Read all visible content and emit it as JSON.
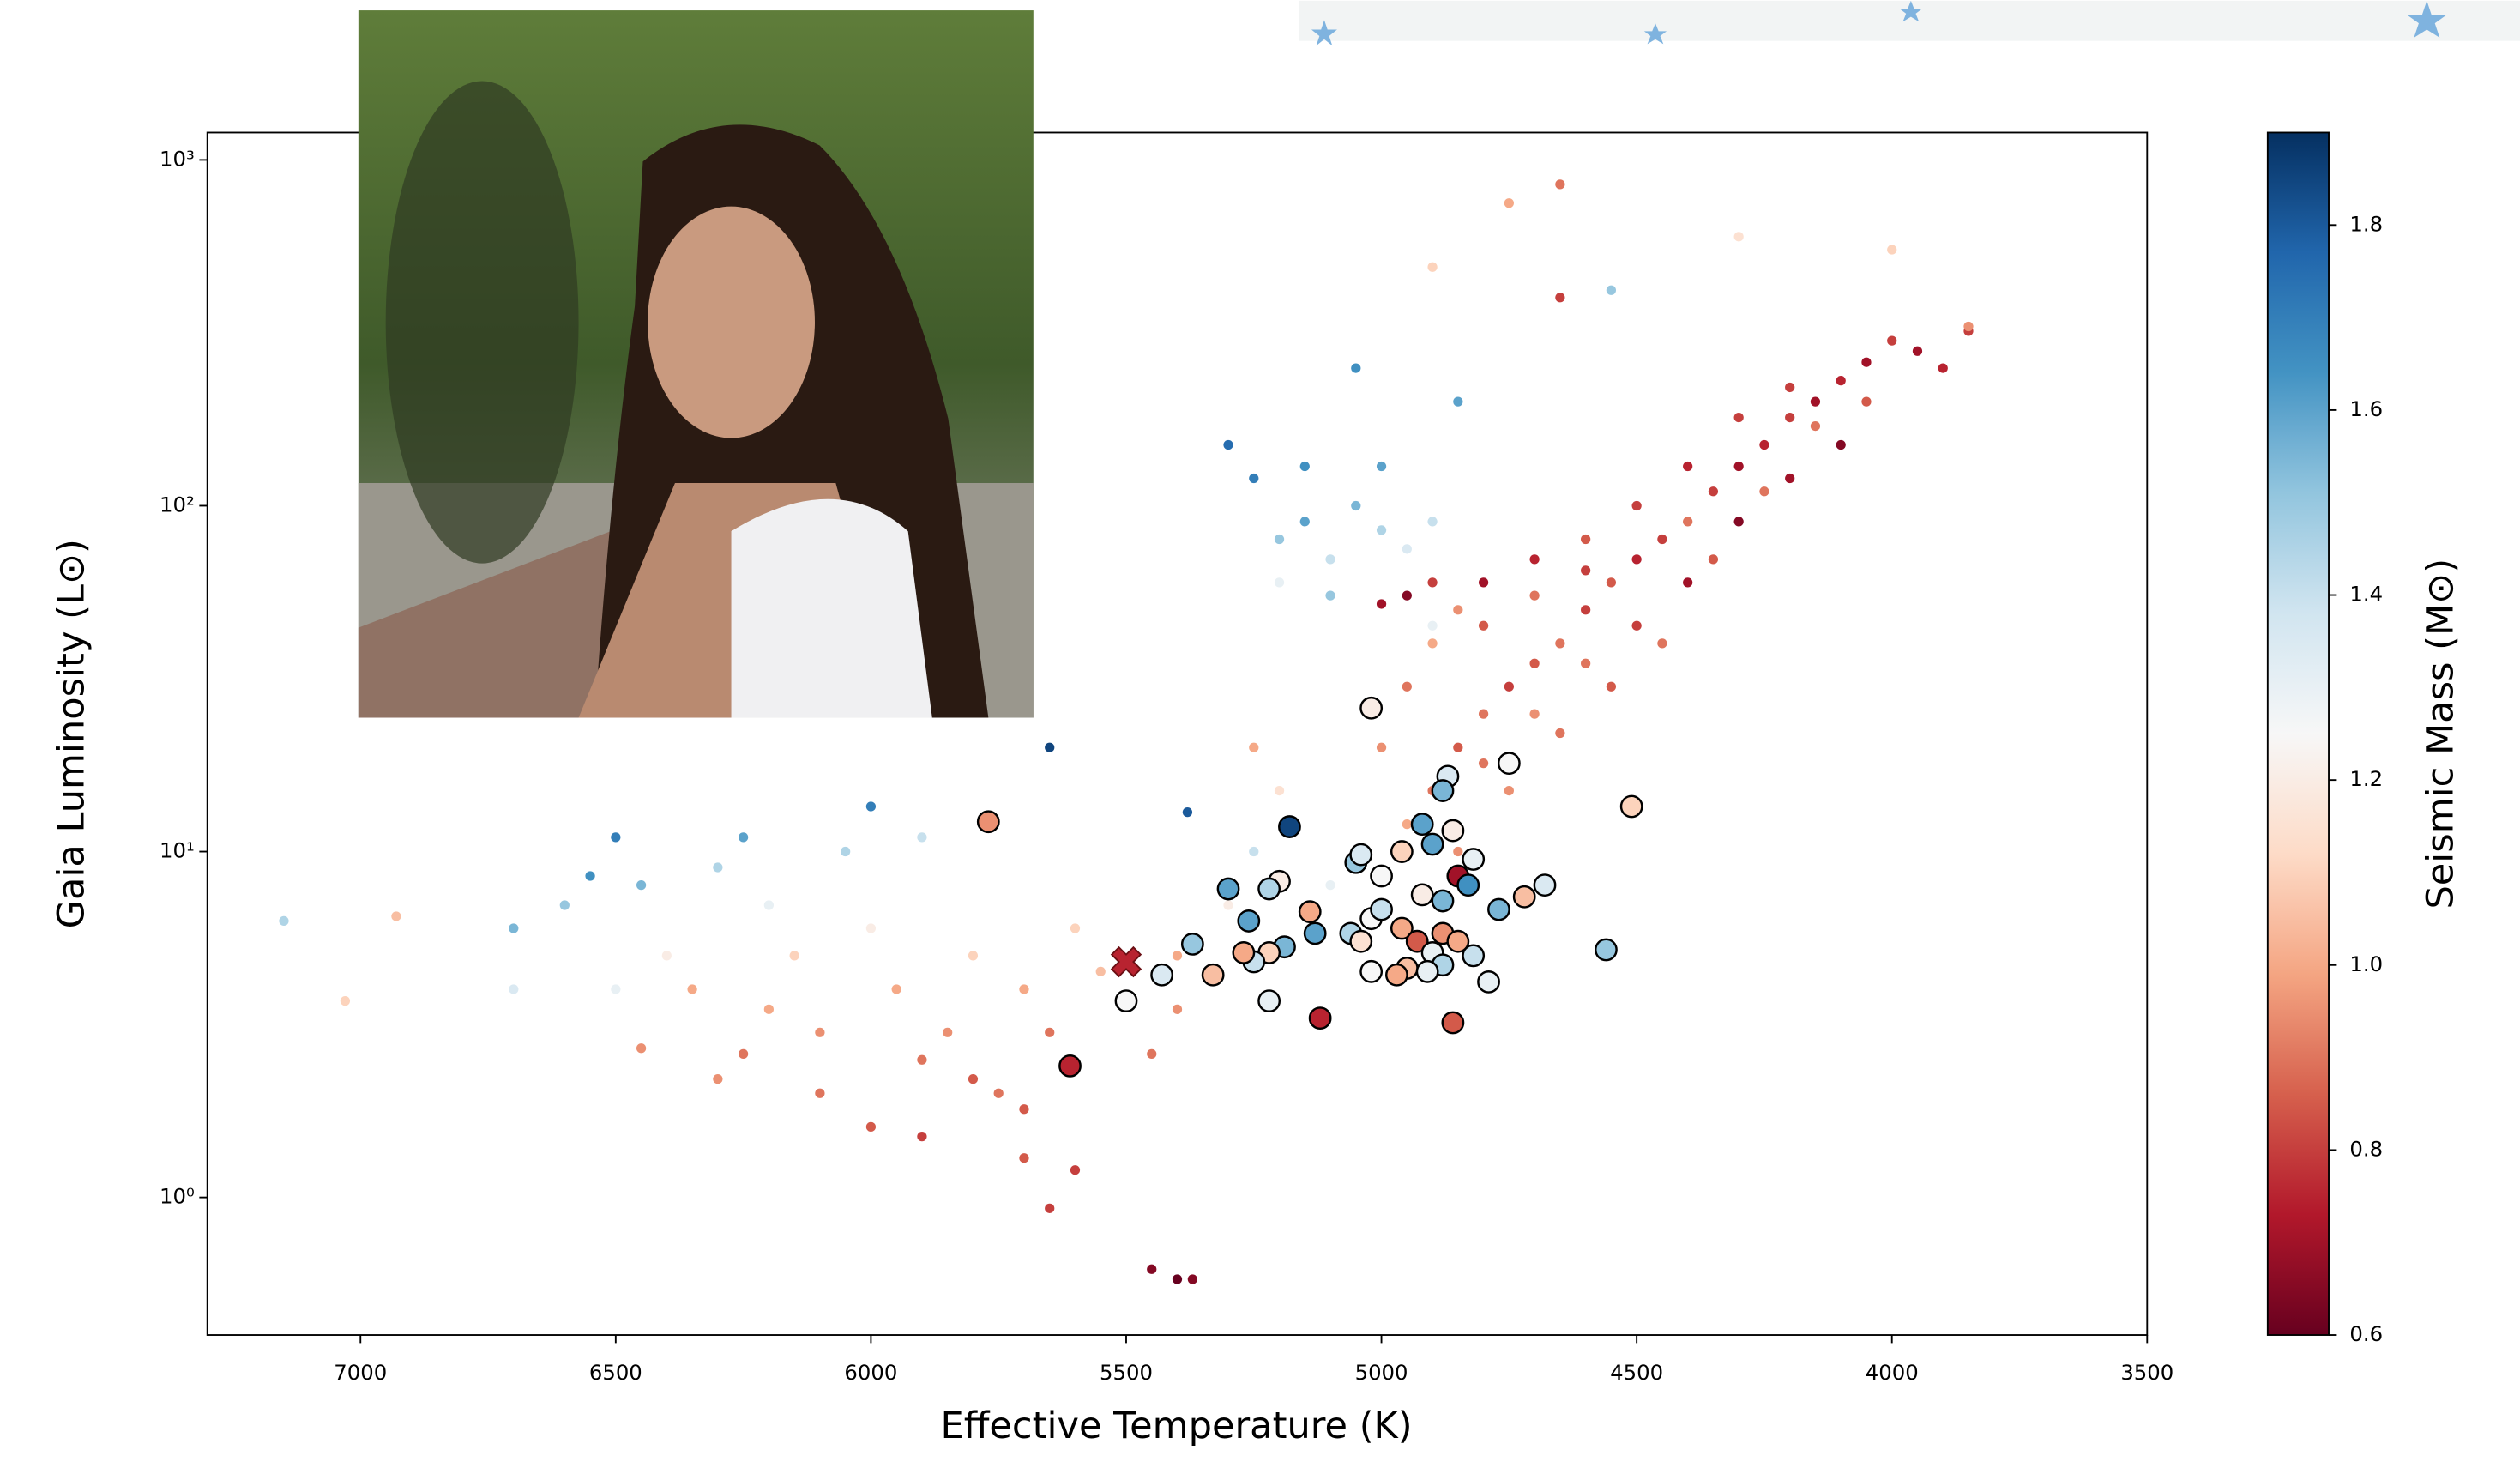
{
  "chart_data": {
    "type": "scatter",
    "x_label": "Effective Temperature (K)",
    "y_label": "Gaia Luminosity (L⊙)",
    "xlim": [
      7300,
      3500
    ],
    "xticks": [
      7000,
      6500,
      6000,
      5500,
      5000,
      4500,
      4000,
      3500
    ],
    "ylim": [
      0.4,
      1200
    ],
    "yscale": "log",
    "yticks": [
      {
        "value": 1,
        "label": "10⁰"
      },
      {
        "value": 10,
        "label": "10¹"
      },
      {
        "value": 100,
        "label": "10²"
      },
      {
        "value": 1000,
        "label": "10³"
      }
    ],
    "colorbar": {
      "label": "Seismic Mass (M⊙)",
      "colormap": "RdBu",
      "lim": [
        0.6,
        1.9
      ],
      "ticks": [
        0.6,
        0.8,
        {
          "value": 1.0,
          "label": "1.0"
        },
        1.2,
        1.4,
        1.6,
        1.8
      ]
    },
    "series": [
      {
        "marker": "dot",
        "x": [
          4900,
          4850,
          4800,
          4750,
          4700,
          4650,
          4600,
          4550,
          4500,
          4450,
          4400,
          4350,
          4300,
          4250,
          4200,
          4150,
          4100,
          4050,
          4000,
          3950,
          3900,
          3850,
          4100,
          4200,
          4300,
          4400,
          4500,
          4600,
          4700,
          4800,
          4950,
          5000,
          4950,
          4900,
          4850,
          4800,
          4700,
          4600,
          4500,
          4400,
          4300,
          4200,
          4450,
          4350,
          4550,
          4650,
          4750,
          4850,
          4250,
          4150,
          4050,
          4900,
          4950,
          5000,
          4800,
          4700,
          4600,
          5200,
          5150,
          5100,
          5050,
          5000,
          4950,
          5200,
          5100,
          5250,
          5150,
          5000,
          4900,
          5050,
          4850,
          5300,
          4900,
          4750,
          4650,
          4900,
          4650,
          4550,
          4300,
          4000,
          3850,
          6700,
          6600,
          6500,
          6450,
          6400,
          6350,
          6300,
          6250,
          6200,
          6150,
          6100,
          6050,
          6000,
          5950,
          5900,
          5850,
          5800,
          5750,
          5700,
          5650,
          5600,
          5550,
          6500,
          6300,
          6200,
          6100,
          6000,
          5900,
          5800,
          5700,
          6450,
          6250,
          5400,
          5300,
          5400,
          5450,
          5600,
          5650,
          5700,
          5450,
          5400,
          5370,
          7150,
          6930,
          7030,
          6700,
          6550,
          6000,
          5900,
          5650,
          5380,
          5250,
          5100,
          5200,
          5250
        ],
        "y": [
          15,
          20,
          25,
          30,
          35,
          40,
          50,
          60,
          70,
          80,
          90,
          110,
          130,
          150,
          180,
          200,
          230,
          260,
          300,
          280,
          250,
          320,
          150,
          120,
          90,
          60,
          45,
          35,
          25,
          18,
          12,
          20,
          30,
          40,
          50,
          45,
          55,
          80,
          100,
          130,
          180,
          220,
          40,
          70,
          30,
          22,
          15,
          10,
          110,
          170,
          200,
          60,
          55,
          52,
          60,
          70,
          65,
          80,
          90,
          70,
          100,
          85,
          75,
          60,
          55,
          120,
          130,
          130,
          90,
          250,
          200,
          150,
          45,
          750,
          850,
          490,
          400,
          420,
          600,
          550,
          330,
          6,
          7,
          11,
          8,
          5,
          4,
          9,
          11,
          7,
          5,
          3,
          10,
          6,
          4,
          2.5,
          3,
          5,
          2,
          4,
          3,
          6,
          4.5,
          4,
          2.2,
          3.5,
          2,
          1.6,
          1.5,
          2.2,
          1.8,
          2.7,
          2.6,
          5,
          7,
          3.5,
          2.6,
          1.2,
          0.93,
          1.3,
          0.62,
          0.58,
          0.58,
          6.3,
          6.5,
          3.7,
          4,
          8.5,
          13.5,
          11,
          20,
          13,
          10,
          8,
          15,
          20
        ],
        "c": [
          0.9,
          0.85,
          0.9,
          0.8,
          0.85,
          0.9,
          0.8,
          0.85,
          0.75,
          0.8,
          0.9,
          0.8,
          0.7,
          0.75,
          0.8,
          0.7,
          0.75,
          0.7,
          0.8,
          0.7,
          0.75,
          0.8,
          0.65,
          0.7,
          0.65,
          0.7,
          0.8,
          0.9,
          0.95,
          0.9,
          1.0,
          0.95,
          0.9,
          1.0,
          0.95,
          0.85,
          0.9,
          0.85,
          0.8,
          0.75,
          0.8,
          0.8,
          0.9,
          0.85,
          0.85,
          0.9,
          0.95,
          0.95,
          0.9,
          0.9,
          0.85,
          0.8,
          0.65,
          0.7,
          0.7,
          0.75,
          0.8,
          1.5,
          1.6,
          1.4,
          1.55,
          1.45,
          1.35,
          1.3,
          1.5,
          1.7,
          1.65,
          1.6,
          1.4,
          1.65,
          1.6,
          1.75,
          1.3,
          1.0,
          0.9,
          1.1,
          0.8,
          1.5,
          1.15,
          1.1,
          0.95,
          1.55,
          1.5,
          1.7,
          1.55,
          1.2,
          1.0,
          1.45,
          1.6,
          1.3,
          1.1,
          0.95,
          1.45,
          1.2,
          1.0,
          0.9,
          0.95,
          1.1,
          0.9,
          1.0,
          0.9,
          1.1,
          1.05,
          1.3,
          0.95,
          1.0,
          0.9,
          0.85,
          0.8,
          0.85,
          0.85,
          0.95,
          0.9,
          1.0,
          1.2,
          0.95,
          0.9,
          0.8,
          0.8,
          0.85,
          0.65,
          0.6,
          0.65,
          1.45,
          1.05,
          1.1,
          1.35,
          1.65,
          1.7,
          1.4,
          1.85,
          1.8,
          1.4,
          1.3,
          1.15,
          1.0
        ]
      },
      {
        "marker": "circle",
        "x": [
          5770,
          5020,
          4750,
          4510,
          4870,
          4880,
          4920,
          4860,
          4900,
          4820,
          4850,
          4830,
          4880,
          4920,
          4960,
          5000,
          5050,
          5040,
          5200,
          5300,
          5220,
          5260,
          5130,
          5190,
          5220,
          5140,
          5060,
          5040,
          5020,
          5000,
          4960,
          4930,
          4880,
          4900,
          4850,
          4950,
          4880,
          4910,
          5020,
          4970,
          4820,
          4790,
          4770,
          4720,
          4680,
          4560,
          5370,
          5330,
          5250,
          5270,
          5430,
          5500,
          5220,
          5120,
          4860,
          5610,
          5180
        ],
        "y": [
          12.2,
          26,
          18,
          13.5,
          16.5,
          15,
          12,
          11.5,
          10.5,
          9.5,
          8.5,
          8,
          7.2,
          7.5,
          10,
          8.5,
          9.3,
          9.8,
          8.2,
          7.8,
          7.8,
          6.3,
          5.8,
          5.3,
          5.1,
          6.7,
          5.8,
          5.5,
          6.4,
          6.8,
          6.0,
          5.5,
          5.8,
          5.1,
          5.5,
          4.6,
          4.7,
          4.5,
          4.5,
          4.4,
          5.0,
          4.2,
          6.8,
          7.4,
          8,
          5.2,
          5.4,
          4.4,
          4.8,
          5.1,
          4.4,
          3.7,
          3.7,
          3.3,
          3.2,
          2.4,
          11.8
        ],
        "c": [
          0.95,
          1.2,
          1.25,
          1.1,
          1.35,
          1.55,
          1.6,
          1.2,
          1.6,
          1.3,
          0.7,
          1.65,
          1.55,
          1.2,
          1.1,
          1.25,
          1.5,
          1.35,
          1.2,
          1.6,
          1.45,
          1.6,
          1.6,
          1.55,
          1.1,
          1.0,
          1.45,
          1.15,
          1.25,
          1.4,
          1.0,
          0.85,
          0.95,
          1.3,
          1.0,
          1.05,
          1.45,
          1.3,
          1.25,
          1.0,
          1.4,
          1.3,
          1.55,
          1.05,
          1.35,
          1.5,
          1.5,
          1.05,
          1.4,
          1.0,
          1.35,
          1.25,
          1.3,
          0.75,
          0.85,
          0.75,
          1.85
        ]
      },
      {
        "marker": "x",
        "x": [
          5500
        ],
        "y": [
          4.8
        ],
        "c": [
          0.75
        ]
      }
    ]
  }
}
